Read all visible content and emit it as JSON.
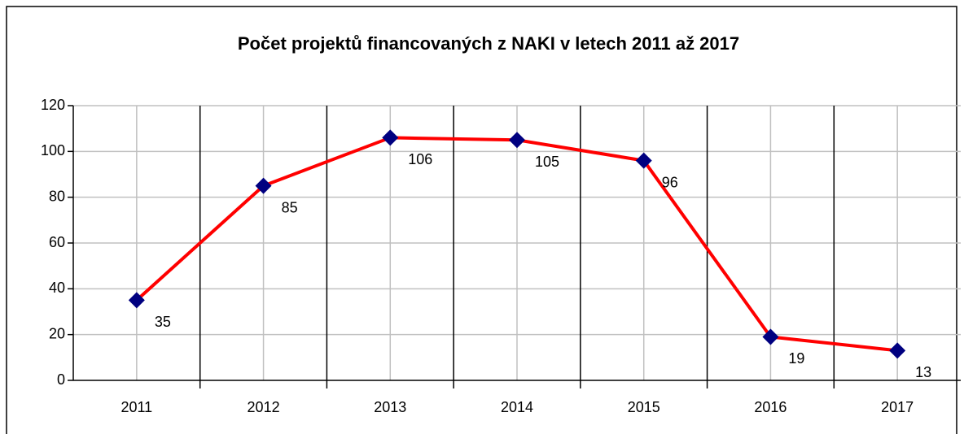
{
  "chart_data": {
    "type": "line",
    "title": "Počet projektů financovaných z NAKI v letech 2011 až 2017",
    "categories": [
      "2011",
      "2012",
      "2013",
      "2014",
      "2015",
      "2016",
      "2017"
    ],
    "series": [
      {
        "color": "#ff0000",
        "marker_color": "#000080",
        "values": [
          35,
          85,
          106,
          105,
          96,
          19,
          13
        ]
      }
    ],
    "ylim": [
      0,
      120
    ],
    "yticks": [
      0,
      20,
      40,
      60,
      80,
      100,
      120
    ],
    "grid": true,
    "data_labels": true
  }
}
